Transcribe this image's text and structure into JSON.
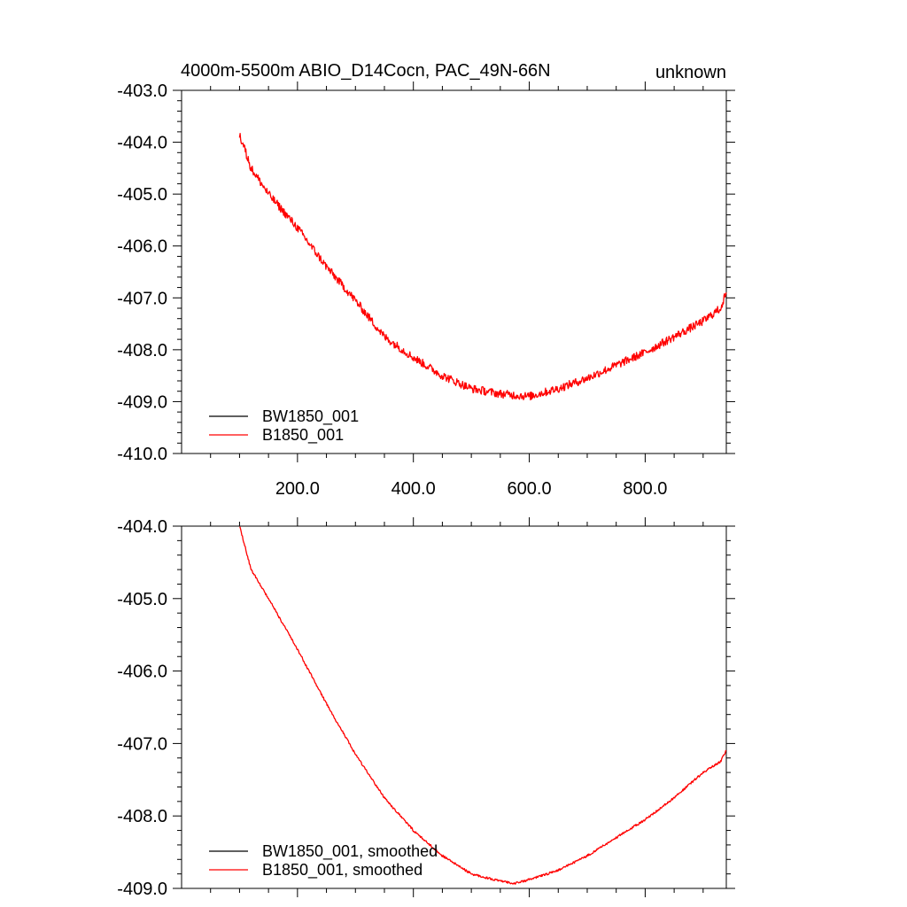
{
  "chart_data": [
    {
      "type": "line",
      "title_left": "4000m-5500m ABIO_D14Cocn, PAC_49N-66N",
      "title_right": "unknown",
      "xlim": [
        0,
        940
      ],
      "ylim": [
        -410.0,
        -403.0
      ],
      "xticks": [
        200.0,
        400.0,
        600.0,
        800.0
      ],
      "xtick_labels": [
        "200.0",
        "400.0",
        "600.0",
        "800.0"
      ],
      "yticks": [
        -410.0,
        -409.0,
        -408.0,
        -407.0,
        -406.0,
        -405.0,
        -404.0,
        -403.0
      ],
      "ytick_labels": [
        "-410.0",
        "-409.0",
        "-408.0",
        "-407.0",
        "-406.0",
        "-405.0",
        "-404.0",
        "-403.0"
      ],
      "legend": "bottom-left",
      "series": [
        {
          "name": "BW1850_001",
          "color": "#000000",
          "x": [],
          "y": []
        },
        {
          "name": "B1850_001",
          "color": "#ff0000",
          "noisy": true,
          "x": [
            100,
            120,
            150,
            200,
            250,
            300,
            350,
            400,
            450,
            500,
            550,
            600,
            650,
            700,
            750,
            800,
            850,
            900,
            930,
            940
          ],
          "y": [
            -403.85,
            -404.5,
            -405.0,
            -405.65,
            -406.4,
            -407.05,
            -407.75,
            -408.15,
            -408.5,
            -408.75,
            -408.85,
            -408.9,
            -408.75,
            -408.55,
            -408.3,
            -408.05,
            -407.75,
            -407.45,
            -407.2,
            -406.9
          ]
        }
      ]
    },
    {
      "type": "line",
      "xlim": [
        0,
        940
      ],
      "ylim": [
        -409.0,
        -404.0
      ],
      "xticks": [
        200.0,
        400.0,
        600.0,
        800.0
      ],
      "yticks": [
        -409.0,
        -408.0,
        -407.0,
        -406.0,
        -405.0,
        -404.0
      ],
      "ytick_labels": [
        "-409.0",
        "-408.0",
        "-407.0",
        "-406.0",
        "-405.0",
        "-404.0"
      ],
      "legend": "bottom-left",
      "series": [
        {
          "name": "BW1850_001, smoothed",
          "color": "#000000",
          "x": [],
          "y": []
        },
        {
          "name": "B1850_001, smoothed",
          "color": "#ff0000",
          "noisy": false,
          "x": [
            100,
            120,
            150,
            200,
            250,
            300,
            350,
            400,
            450,
            500,
            550,
            575,
            600,
            650,
            700,
            750,
            800,
            850,
            900,
            930,
            940
          ],
          "y": [
            -404.0,
            -404.6,
            -405.0,
            -405.7,
            -406.45,
            -407.15,
            -407.75,
            -408.2,
            -408.55,
            -408.8,
            -408.9,
            -408.93,
            -408.88,
            -408.75,
            -408.55,
            -408.3,
            -408.05,
            -407.75,
            -407.4,
            -407.25,
            -407.1
          ]
        }
      ]
    }
  ]
}
